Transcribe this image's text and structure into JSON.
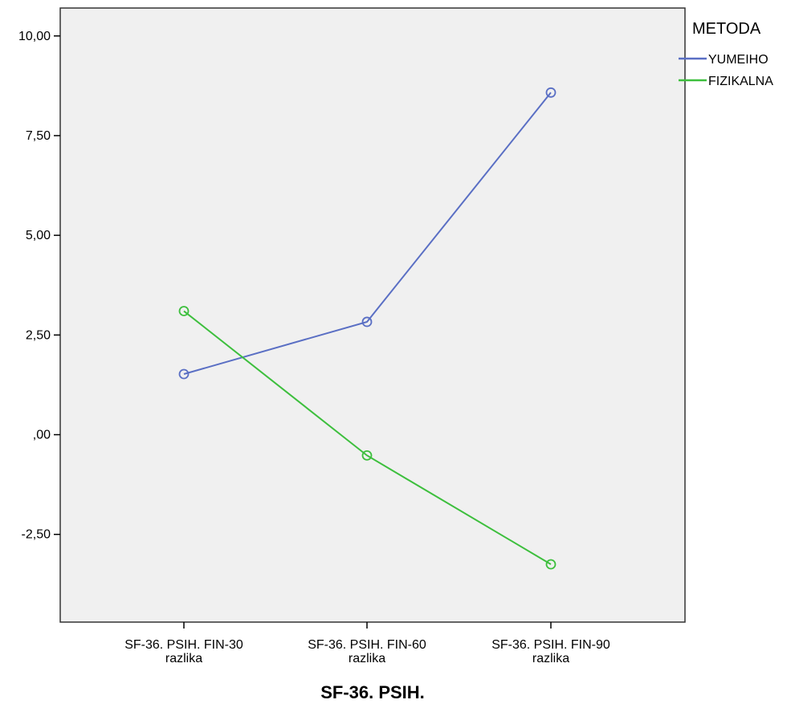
{
  "chart_data": {
    "type": "line",
    "title": "",
    "xlabel": "SF-36. PSIH.",
    "ylabel": "",
    "categories": [
      [
        "SF-36. PSIH. FIN-30",
        "razlika"
      ],
      [
        "SF-36. PSIH. FIN-60",
        "razlika"
      ],
      [
        "SF-36. PSIH. FIN-90",
        "razlika"
      ]
    ],
    "ylim": [
      -4.7,
      10.7
    ],
    "yticks": [
      -2.5,
      0,
      2.5,
      5,
      7.5,
      10
    ],
    "ytick_labels": [
      "-2,50",
      ",00",
      "2,50",
      "5,00",
      "7,50",
      "10,00"
    ],
    "grid": false,
    "legend": {
      "title": "METODA",
      "placement": "right"
    },
    "series": [
      {
        "name": "YUMEIHO",
        "color": "#5a6fc4",
        "values": [
          1.52,
          2.83,
          8.58
        ]
      },
      {
        "name": "FIZIKALNA",
        "color": "#3dbf3d",
        "values": [
          3.1,
          -0.52,
          -3.25
        ]
      }
    ],
    "plot_background": "#f0f0f0"
  }
}
